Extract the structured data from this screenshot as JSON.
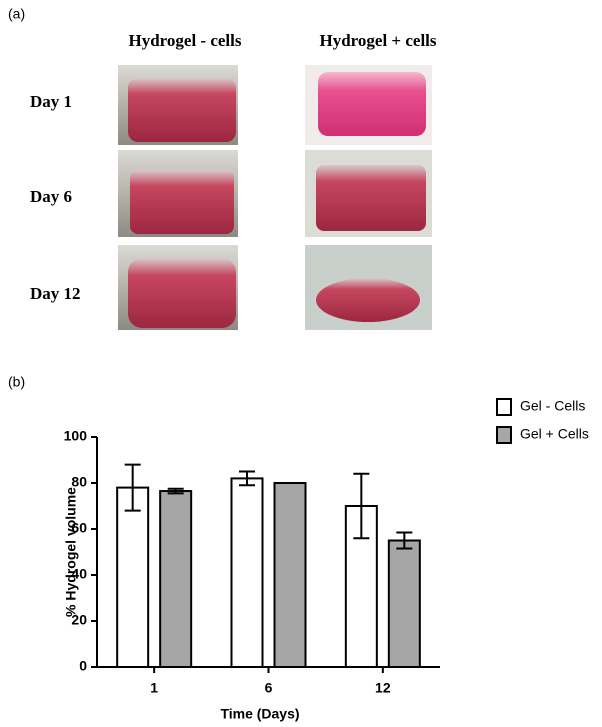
{
  "panel_a": {
    "label": "(a)",
    "columns": [
      "Hydrogel - cells",
      "Hydrogel + cells"
    ],
    "rows": [
      "Day 1",
      "Day 6",
      "Day 12"
    ]
  },
  "chart_data": {
    "type": "bar",
    "panel_label": "(b)",
    "x_label": "Time (Days)",
    "y_label": "% Hydrogel volume",
    "categories": [
      "1",
      "6",
      "12"
    ],
    "series": [
      {
        "name": "Gel - Cells",
        "color": "#ffffff",
        "values": [
          78,
          82,
          70
        ],
        "errors": [
          10,
          3,
          14
        ]
      },
      {
        "name": "Gel + Cells",
        "color": "#a6a6a6",
        "values": [
          76.5,
          80,
          55
        ],
        "errors": [
          1,
          0,
          3.5
        ]
      }
    ],
    "ylim": [
      0,
      100
    ],
    "yticks": [
      0,
      20,
      40,
      60,
      80,
      100
    ],
    "legend": "upper right"
  }
}
